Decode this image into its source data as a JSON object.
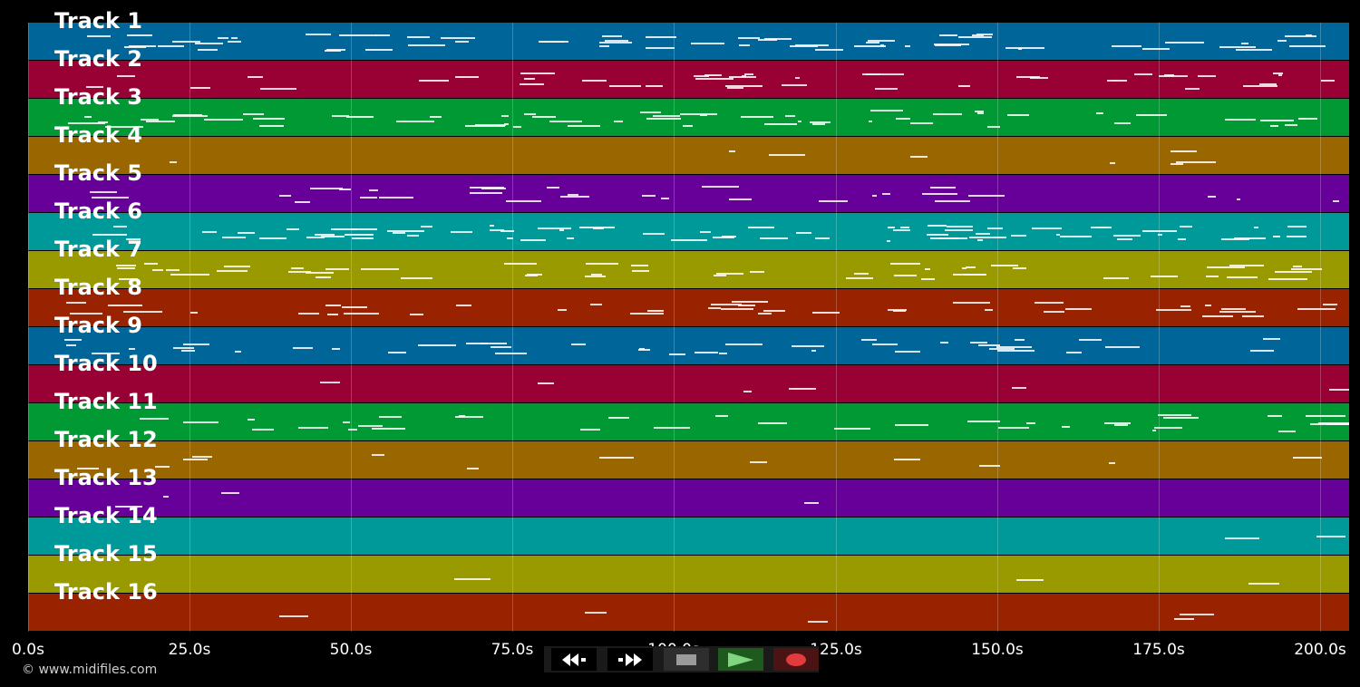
{
  "tracks": [
    {
      "label": "Track 1",
      "color": "#006699"
    },
    {
      "label": "Track 2",
      "color": "#990033"
    },
    {
      "label": "Track 3",
      "color": "#009933"
    },
    {
      "label": "Track 4",
      "color": "#996600"
    },
    {
      "label": "Track 5",
      "color": "#660099"
    },
    {
      "label": "Track 6",
      "color": "#009999"
    },
    {
      "label": "Track 7",
      "color": "#999900"
    },
    {
      "label": "Track 8",
      "color": "#992200"
    },
    {
      "label": "Track 9",
      "color": "#006699"
    },
    {
      "label": "Track 10",
      "color": "#990033"
    },
    {
      "label": "Track 11",
      "color": "#009933"
    },
    {
      "label": "Track 12",
      "color": "#996600"
    },
    {
      "label": "Track 13",
      "color": "#660099"
    },
    {
      "label": "Track 14",
      "color": "#009999"
    },
    {
      "label": "Track 15",
      "color": "#999900"
    },
    {
      "label": "Track 16",
      "color": "#992200"
    }
  ],
  "timeline": {
    "max_seconds": 204.5,
    "ticks": [
      {
        "label": "0.0s",
        "seconds": 0
      },
      {
        "label": "25.0s",
        "seconds": 25
      },
      {
        "label": "50.0s",
        "seconds": 50
      },
      {
        "label": "75.0s",
        "seconds": 75
      },
      {
        "label": "100.0s",
        "seconds": 100
      },
      {
        "label": "125.0s",
        "seconds": 125
      },
      {
        "label": "150.0s",
        "seconds": 150
      },
      {
        "label": "175.0s",
        "seconds": 175
      },
      {
        "label": "200.0s",
        "seconds": 200
      }
    ]
  },
  "credit": "© www.midifiles.com",
  "transport": {
    "rewind_icon": "rewind-icon",
    "fast_forward_icon": "fast-forward-icon",
    "stop_icon": "stop-icon",
    "play_icon": "play-icon",
    "record_icon": "record-icon",
    "play_color": "#7fd67f",
    "record_color": "#e23b3b"
  }
}
